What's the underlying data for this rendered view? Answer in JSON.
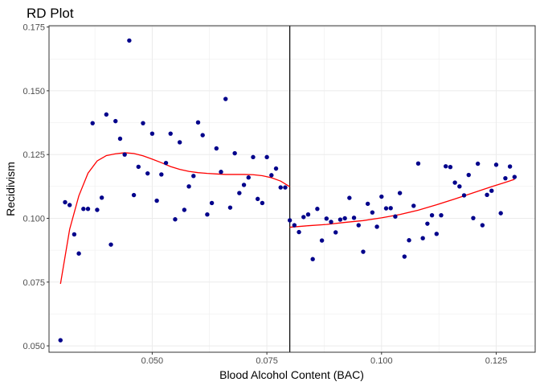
{
  "chart_data": {
    "type": "scatter",
    "title": "RD Plot",
    "xlabel": "Blood Alcohol Content (BAC)",
    "ylabel": "Recidivism",
    "xlim": [
      0.0275,
      0.1335
    ],
    "ylim": [
      0.0475,
      0.1755
    ],
    "xticks": [
      0.05,
      0.075,
      0.1,
      0.125
    ],
    "xtick_labels": [
      "0.050",
      "0.075",
      "0.100",
      "0.125"
    ],
    "yticks": [
      0.05,
      0.075,
      0.1,
      0.125,
      0.15,
      0.175
    ],
    "ytick_labels": [
      "0.050",
      "0.075",
      "0.100",
      "0.125",
      "0.150",
      "0.175"
    ],
    "grid": true,
    "cutoff": 0.08,
    "colors": {
      "points": "#00008b",
      "fit": "#ff0000",
      "cutoff": "#000000",
      "grid": "#ebebeb",
      "panel_border": "#333333"
    },
    "points": [
      [
        0.03,
        0.0522
      ],
      [
        0.031,
        0.1063
      ],
      [
        0.032,
        0.1052
      ],
      [
        0.033,
        0.0937
      ],
      [
        0.034,
        0.0862
      ],
      [
        0.035,
        0.1037
      ],
      [
        0.036,
        0.1037
      ],
      [
        0.037,
        0.1373
      ],
      [
        0.038,
        0.1033
      ],
      [
        0.039,
        0.1081
      ],
      [
        0.04,
        0.1407
      ],
      [
        0.041,
        0.0897
      ],
      [
        0.042,
        0.1381
      ],
      [
        0.043,
        0.1312
      ],
      [
        0.044,
        0.125
      ],
      [
        0.045,
        0.1697
      ],
      [
        0.046,
        0.1091
      ],
      [
        0.047,
        0.1202
      ],
      [
        0.048,
        0.1373
      ],
      [
        0.049,
        0.1176
      ],
      [
        0.05,
        0.1332
      ],
      [
        0.051,
        0.1069
      ],
      [
        0.052,
        0.1172
      ],
      [
        0.053,
        0.1217
      ],
      [
        0.054,
        0.1332
      ],
      [
        0.055,
        0.0996
      ],
      [
        0.056,
        0.1298
      ],
      [
        0.057,
        0.1033
      ],
      [
        0.058,
        0.1125
      ],
      [
        0.059,
        0.1166
      ],
      [
        0.06,
        0.1376
      ],
      [
        0.061,
        0.1326
      ],
      [
        0.062,
        0.1015
      ],
      [
        0.063,
        0.106
      ],
      [
        0.064,
        0.1274
      ],
      [
        0.065,
        0.1182
      ],
      [
        0.066,
        0.1468
      ],
      [
        0.067,
        0.1042
      ],
      [
        0.068,
        0.1255
      ],
      [
        0.069,
        0.1099
      ],
      [
        0.07,
        0.1131
      ],
      [
        0.071,
        0.116
      ],
      [
        0.072,
        0.124
      ],
      [
        0.073,
        0.1076
      ],
      [
        0.074,
        0.106
      ],
      [
        0.075,
        0.124
      ],
      [
        0.076,
        0.1169
      ],
      [
        0.077,
        0.1195
      ],
      [
        0.078,
        0.1121
      ],
      [
        0.079,
        0.1121
      ],
      [
        0.08,
        0.0992
      ],
      [
        0.081,
        0.0973
      ],
      [
        0.082,
        0.0946
      ],
      [
        0.083,
        0.1005
      ],
      [
        0.084,
        0.1015
      ],
      [
        0.085,
        0.084
      ],
      [
        0.086,
        0.1037
      ],
      [
        0.087,
        0.0913
      ],
      [
        0.088,
        0.0999
      ],
      [
        0.089,
        0.0986
      ],
      [
        0.09,
        0.0945
      ],
      [
        0.091,
        0.0995
      ],
      [
        0.092,
        0.1
      ],
      [
        0.093,
        0.108
      ],
      [
        0.094,
        0.1002
      ],
      [
        0.095,
        0.0973
      ],
      [
        0.096,
        0.0869
      ],
      [
        0.097,
        0.1057
      ],
      [
        0.098,
        0.1023
      ],
      [
        0.099,
        0.0967
      ],
      [
        0.1,
        0.1085
      ],
      [
        0.101,
        0.1039
      ],
      [
        0.102,
        0.104
      ],
      [
        0.103,
        0.1007
      ],
      [
        0.104,
        0.1099
      ],
      [
        0.105,
        0.085
      ],
      [
        0.106,
        0.0914
      ],
      [
        0.107,
        0.1049
      ],
      [
        0.108,
        0.1215
      ],
      [
        0.109,
        0.0922
      ],
      [
        0.11,
        0.0979
      ],
      [
        0.111,
        0.1012
      ],
      [
        0.112,
        0.0939
      ],
      [
        0.113,
        0.1012
      ],
      [
        0.114,
        0.1204
      ],
      [
        0.115,
        0.1201
      ],
      [
        0.116,
        0.114
      ],
      [
        0.117,
        0.1125
      ],
      [
        0.118,
        0.109
      ],
      [
        0.119,
        0.117
      ],
      [
        0.12,
        0.1001
      ],
      [
        0.121,
        0.1214
      ],
      [
        0.122,
        0.0973
      ],
      [
        0.123,
        0.1092
      ],
      [
        0.124,
        0.1108
      ],
      [
        0.125,
        0.121
      ],
      [
        0.126,
        0.102
      ],
      [
        0.127,
        0.1157
      ],
      [
        0.128,
        0.1203
      ],
      [
        0.129,
        0.1162
      ]
    ],
    "fit_left": [
      [
        0.03,
        0.0743
      ],
      [
        0.032,
        0.0957
      ],
      [
        0.034,
        0.1088
      ],
      [
        0.036,
        0.1177
      ],
      [
        0.038,
        0.1225
      ],
      [
        0.04,
        0.1246
      ],
      [
        0.042,
        0.1253
      ],
      [
        0.044,
        0.1257
      ],
      [
        0.046,
        0.1254
      ],
      [
        0.048,
        0.1245
      ],
      [
        0.05,
        0.1232
      ],
      [
        0.052,
        0.1218
      ],
      [
        0.054,
        0.1203
      ],
      [
        0.056,
        0.1192
      ],
      [
        0.058,
        0.1184
      ],
      [
        0.06,
        0.1179
      ],
      [
        0.062,
        0.1176
      ],
      [
        0.064,
        0.1174
      ],
      [
        0.066,
        0.1172
      ],
      [
        0.068,
        0.1172
      ],
      [
        0.07,
        0.1172
      ],
      [
        0.072,
        0.1171
      ],
      [
        0.074,
        0.1167
      ],
      [
        0.076,
        0.1159
      ],
      [
        0.078,
        0.1146
      ],
      [
        0.08,
        0.1124
      ]
    ],
    "fit_right": [
      [
        0.08,
        0.0965
      ],
      [
        0.084,
        0.0971
      ],
      [
        0.088,
        0.0976
      ],
      [
        0.092,
        0.0984
      ],
      [
        0.096,
        0.0991
      ],
      [
        0.1,
        0.1002
      ],
      [
        0.104,
        0.1015
      ],
      [
        0.108,
        0.1032
      ],
      [
        0.112,
        0.1053
      ],
      [
        0.116,
        0.1076
      ],
      [
        0.12,
        0.11
      ],
      [
        0.124,
        0.1124
      ],
      [
        0.127,
        0.1141
      ],
      [
        0.129,
        0.1153
      ]
    ]
  }
}
